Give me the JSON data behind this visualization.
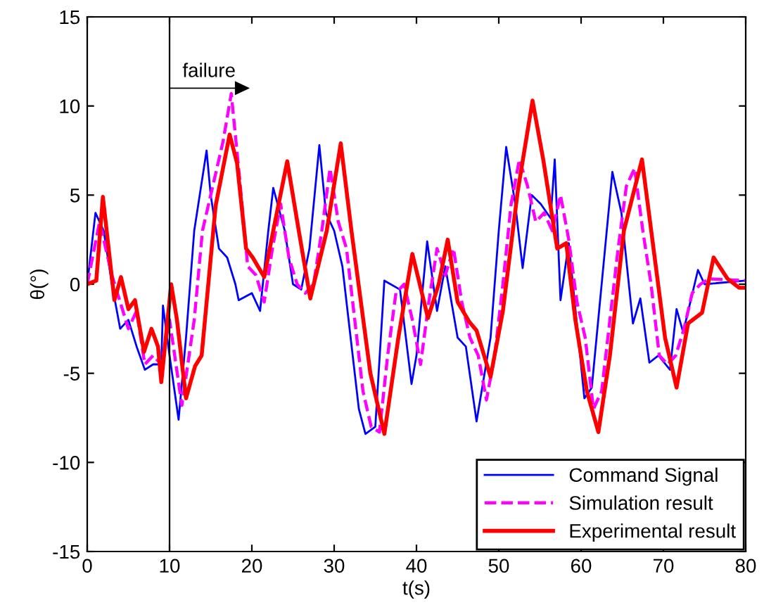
{
  "chart_data": {
    "type": "line",
    "xlabel": "t(s)",
    "ylabel": "θ(°)",
    "xlim": [
      0,
      80
    ],
    "ylim": [
      -15,
      15
    ],
    "xticks": [
      0,
      10,
      20,
      30,
      40,
      50,
      60,
      70,
      80
    ],
    "yticks": [
      -15,
      -10,
      -5,
      0,
      5,
      10,
      15
    ],
    "grid": false,
    "legend": "bottom right",
    "series": [
      {
        "name": "Command Signal",
        "color": "#0000ff",
        "line_style": "solid",
        "marker": "none",
        "x": [
          0,
          1,
          2,
          3,
          4,
          5,
          6,
          7,
          8,
          9,
          9.2,
          10,
          11.1,
          12,
          13,
          14.5,
          15,
          16,
          17,
          18,
          18.4,
          20,
          21,
          22,
          22.6,
          24,
          25,
          26,
          27,
          28.2,
          29,
          30,
          31,
          32,
          33,
          33.8,
          35,
          36.1,
          38,
          39.4,
          40,
          41.3,
          42.5,
          43.5,
          45,
          46,
          47.3,
          49,
          50,
          50.9,
          52,
          52.9,
          54,
          55.1,
          56.3,
          56.8,
          57.5,
          58.5,
          60.4,
          61.3,
          63.8,
          64.9,
          66.3,
          67.2,
          68.3,
          69.4,
          70.8,
          71.6,
          72.4,
          74.2,
          75,
          80
        ],
        "values": [
          0,
          4,
          3,
          0,
          -2.5,
          -2,
          -3.5,
          -4.8,
          -4.5,
          -4.5,
          -1.2,
          -4,
          -7.6,
          -3,
          3,
          7.5,
          5,
          2,
          1.5,
          0,
          -0.9,
          -0.5,
          -1.5,
          3,
          5.4,
          3,
          0,
          -0.3,
          2,
          7.8,
          4,
          3,
          1,
          -3,
          -7,
          -8.4,
          -8,
          0.2,
          -0.3,
          -5.6,
          -4,
          2.4,
          -1.5,
          1,
          -3,
          -3.5,
          -7.7,
          -3,
          3,
          7.7,
          4.5,
          0.9,
          5,
          4.5,
          3.7,
          7,
          -0.9,
          2.3,
          -6.4,
          -5.8,
          6.3,
          4,
          -2.2,
          -0.8,
          -4.4,
          -4,
          -4.8,
          -1.4,
          -2.7,
          0.8,
          0,
          0.2
        ]
      },
      {
        "name": "Simulation result",
        "color": "#ff00ff",
        "line_style": "dashed",
        "marker": "none",
        "x": [
          0,
          1.5,
          3,
          4,
          5,
          6,
          7,
          8,
          9,
          10,
          11.5,
          13,
          14,
          15.5,
          16.5,
          17.5,
          18.5,
          19.5,
          20.5,
          21.5,
          22.5,
          23.5,
          24.5,
          25.5,
          26.5,
          27.5,
          28.5,
          29.5,
          30.5,
          31.5,
          32.5,
          33.5,
          34.5,
          35.5,
          36.5,
          37.5,
          38.5,
          39.5,
          40.5,
          41.5,
          42.5,
          43.5,
          44.5,
          45.5,
          46.5,
          47.5,
          48.5,
          49.5,
          50.5,
          51.5,
          52.5,
          53.5,
          54.5,
          55.5,
          56.5,
          57.5,
          58.5,
          59.5,
          60.5,
          61.5,
          62.5,
          63.5,
          64.5,
          65.5,
          66.5,
          67.5,
          68.5,
          69.5,
          70.5,
          71.5,
          72.5,
          73.5,
          74.5,
          75.5,
          80
        ],
        "values": [
          0,
          3.5,
          0.5,
          -1,
          -2.5,
          -1.5,
          -4.5,
          -4,
          -4.5,
          -2,
          -6.8,
          -2,
          3,
          6,
          8,
          10.7,
          6,
          1,
          0.5,
          -1,
          2,
          4.5,
          1.5,
          0,
          -0.5,
          0,
          3,
          6.5,
          3.5,
          2,
          -2,
          -6,
          -8,
          -8.3,
          -4,
          -0.5,
          0,
          -2,
          -4.5,
          -1,
          2,
          0.5,
          2,
          -1,
          -3,
          -4,
          -6.5,
          -4,
          0,
          4.5,
          7,
          5.5,
          3.5,
          4,
          3,
          5,
          2.5,
          -1,
          -3,
          -7,
          -6,
          -2,
          2,
          5.5,
          6.5,
          3,
          0,
          -4,
          -4.5,
          -4,
          -2.5,
          -0.5,
          0,
          0.3,
          0.2
        ]
      },
      {
        "name": "Experimental result",
        "color": "#ff0000",
        "line_style": "solid",
        "marker": "none",
        "x": [
          0,
          1.1,
          1.9,
          3.3,
          4.1,
          5,
          5.8,
          6.9,
          7.8,
          8.6,
          9,
          10.2,
          10.9,
          12,
          13.1,
          13.9,
          15.6,
          17.3,
          18.2,
          19.3,
          20.1,
          21.5,
          22.6,
          24.3,
          25.7,
          27.1,
          29.1,
          30.8,
          32.1,
          34.4,
          36.1,
          37.8,
          39.5,
          41.4,
          42.7,
          43.8,
          45,
          46.4,
          47.3,
          49,
          50.5,
          52.3,
          54.1,
          55.4,
          57.1,
          58.2,
          59.3,
          60.7,
          62.1,
          63.5,
          65.2,
          67.4,
          68.8,
          70.2,
          71.6,
          73,
          74.7,
          76.1,
          77.8,
          79.2,
          80
        ],
        "values": [
          0,
          0.2,
          4.9,
          -0.9,
          0.4,
          -1.4,
          -0.9,
          -3.8,
          -2.5,
          -3.5,
          -5.5,
          0,
          -2,
          -6.4,
          -4.6,
          -4,
          4.4,
          8.4,
          6.8,
          2,
          1.5,
          0.4,
          3,
          6.9,
          3,
          -0.8,
          3,
          7.9,
          3,
          -5,
          -8.4,
          -3,
          1.7,
          -1.9,
          0,
          2.5,
          -1,
          -2.1,
          -2.6,
          -5.2,
          -1.5,
          5.2,
          10.3,
          7,
          2,
          2.3,
          -2,
          -6,
          -8.3,
          -4,
          3,
          7,
          2,
          -3,
          -5.8,
          -2.2,
          -1.6,
          1.5,
          0.3,
          -0.2,
          -0.2
        ]
      }
    ],
    "ref_lines": [
      {
        "axis": "x",
        "value": 10,
        "color": "#000000",
        "line_style": "solid"
      }
    ],
    "annotations": [
      {
        "text": "failure",
        "x": 10,
        "y": 11
      }
    ]
  }
}
